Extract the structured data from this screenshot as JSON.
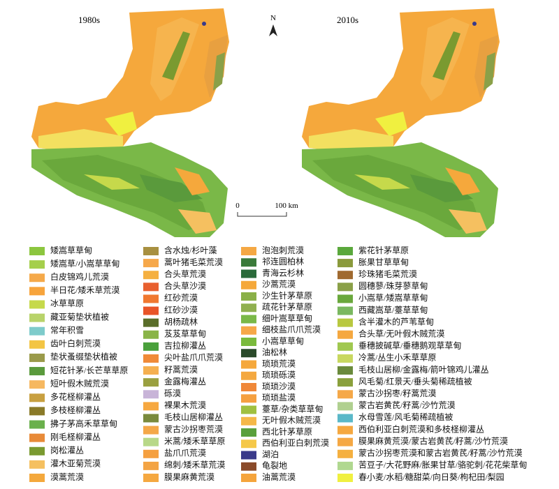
{
  "maps": [
    {
      "label": "1980s"
    },
    {
      "label": "2010s"
    }
  ],
  "north": "N",
  "scale_bar": {
    "start": "0",
    "end": "100 km"
  },
  "legend": {
    "columns": [
      [
        {
          "name": "矮嵩草草甸",
          "color": "#8cc63f"
        },
        {
          "name": "矮嵩草/小嵩草草甸",
          "color": "#a5cf4c"
        },
        {
          "name": "白皮锦鸡儿荒漠",
          "color": "#f5a94a"
        },
        {
          "name": "半日花/矮禾草荒漠",
          "color": "#f7a43c"
        },
        {
          "name": "冰草草原",
          "color": "#c6d94b"
        },
        {
          "name": "藏亚菊垫状植被",
          "color": "#b8d36a"
        },
        {
          "name": "常年积雪",
          "color": "#7ecbcb"
        },
        {
          "name": "齿叶白刺荒漠",
          "color": "#f3c544"
        },
        {
          "name": "垫状蚤缀垫状植被",
          "color": "#9a9a4a"
        },
        {
          "name": "短花针茅/长芒草草原",
          "color": "#5a9a3c"
        },
        {
          "name": "短叶假木贼荒漠",
          "color": "#f6b860"
        },
        {
          "name": "多花柽柳灌丛",
          "color": "#c8a040"
        },
        {
          "name": "多枝柽柳灌丛",
          "color": "#8a7a28"
        },
        {
          "name": "拂子茅高禾草草甸",
          "color": "#6ab04c"
        },
        {
          "name": "刚毛柽柳灌丛",
          "color": "#e88a38"
        },
        {
          "name": "岗松灌丛",
          "color": "#7a9a30"
        },
        {
          "name": "灌木亚菊荒漠",
          "color": "#f5c060"
        },
        {
          "name": "漠蒿荒漠",
          "color": "#f4a83c"
        }
      ],
      [
        {
          "name": "含水烛/杉叶藻",
          "color": "#a89040"
        },
        {
          "name": "蒿叶猪毛菜荒漠",
          "color": "#f6a84a"
        },
        {
          "name": "合头草荒漠",
          "color": "#f5b040"
        },
        {
          "name": "合头草沙漠",
          "color": "#e86030"
        },
        {
          "name": "红砂荒漠",
          "color": "#f07830"
        },
        {
          "name": "红砂沙漠",
          "color": "#e85428"
        },
        {
          "name": "胡杨疏林",
          "color": "#5a6e2a"
        },
        {
          "name": "芨芨草草甸",
          "color": "#8ab448"
        },
        {
          "name": "吉拉柳灌丛",
          "color": "#4aa03c"
        },
        {
          "name": "尖叶盐爪爪荒漠",
          "color": "#f08a38"
        },
        {
          "name": "籽蒿荒漠",
          "color": "#f5b050"
        },
        {
          "name": "金露梅灌丛",
          "color": "#9aa040"
        },
        {
          "name": "砾漠",
          "color": "#c8b4d8"
        },
        {
          "name": "裸果木荒漠",
          "color": "#f6a840"
        },
        {
          "name": "毛枝山居柳灌丛",
          "color": "#7a8a3c"
        },
        {
          "name": "蒙古沙拐枣荒漠",
          "color": "#f4a848"
        },
        {
          "name": "米蒿/矮禾草草原",
          "color": "#b8d888"
        },
        {
          "name": "盐爪爪荒漠",
          "color": "#f5a040"
        },
        {
          "name": "绵刺/矮禾草荒漠",
          "color": "#f3a444"
        },
        {
          "name": "膜果麻黄荒漠",
          "color": "#f5a840"
        }
      ],
      [
        {
          "name": "泡泡刺荒漠",
          "color": "#f5a844"
        },
        {
          "name": "祁连圆柏林",
          "color": "#3a7a3a"
        },
        {
          "name": "青海云杉林",
          "color": "#2a6a3a"
        },
        {
          "name": "沙蒿荒漠",
          "color": "#f5a83a"
        },
        {
          "name": "沙生针茅草原",
          "color": "#8ab048"
        },
        {
          "name": "疏花针茅草原",
          "color": "#90b050"
        },
        {
          "name": "细叶嵩草草甸",
          "color": "#7ab848"
        },
        {
          "name": "细枝盐爪爪荒漠",
          "color": "#f6a848"
        },
        {
          "name": "小嵩草草甸",
          "color": "#7aba3c"
        },
        {
          "name": "油松林",
          "color": "#2a4a2a"
        },
        {
          "name": "琐琐荒漠",
          "color": "#f5a83c"
        },
        {
          "name": "琐琐砾漠",
          "color": "#f4a840"
        },
        {
          "name": "琐琐沙漠",
          "color": "#f08838"
        },
        {
          "name": "琐琐盐漠",
          "color": "#f5a040"
        },
        {
          "name": "薹草/杂类草草甸",
          "color": "#a0c040"
        },
        {
          "name": "无叶假木贼荒漠",
          "color": "#f5b848"
        },
        {
          "name": "西北针茅草原",
          "color": "#5aa03c"
        },
        {
          "name": "西伯利亚白刺荒漠",
          "color": "#f5c848"
        },
        {
          "name": "湖泊",
          "color": "#3a3a8a"
        },
        {
          "name": "龟裂地",
          "color": "#8a4a2a"
        },
        {
          "name": "油蒿荒漠",
          "color": "#f5a43c"
        }
      ],
      [
        {
          "name": "紫花针茅草原",
          "color": "#5aa83c"
        },
        {
          "name": "胀果甘草草甸",
          "color": "#8a9a3c"
        },
        {
          "name": "珍珠猪毛菜荒漠",
          "color": "#a06a30"
        },
        {
          "name": "圆穗蓼/珠芽蓼草甸",
          "color": "#8aa048"
        },
        {
          "name": "小嵩草/矮嵩草草甸",
          "color": "#6aa83c"
        },
        {
          "name": "西藏嵩草/薹草草甸",
          "color": "#7ab860"
        },
        {
          "name": "含半灌木的芦苇草甸",
          "color": "#b8c840"
        },
        {
          "name": "合头草/无叶假木贼荒漠",
          "color": "#f5a840"
        },
        {
          "name": "垂穗披碱草/垂穗鹅观草草甸",
          "color": "#a0c850"
        },
        {
          "name": "冷蒿/丛生小禾草草原",
          "color": "#c8d860"
        },
        {
          "name": "毛枝山居柳/金露梅/箭叶锦鸡儿灌丛",
          "color": "#6a8a3c"
        },
        {
          "name": "风毛菊/红景天/垂头菊稀疏植被",
          "color": "#8aa03c"
        },
        {
          "name": "蒙古沙拐枣/籽蒿荒漠",
          "color": "#f5a848"
        },
        {
          "name": "蒙古岩黄芪/籽蒿/沙竹荒漠",
          "color": "#b0d090"
        },
        {
          "name": "水母雪莲/风毛菊稀疏植被",
          "color": "#5ab8c8"
        },
        {
          "name": "西伯利亚白刺荒漠和多枝柽柳灌丛",
          "color": "#f5a840"
        },
        {
          "name": "膜果麻黄荒漠/蒙古岩黄芪/籽蒿/沙竹荒漠",
          "color": "#f5a844"
        },
        {
          "name": "蒙古沙拐枣荒漠和蒙古岩黄芪/籽蒿/沙竹荒漠",
          "color": "#f5b040"
        },
        {
          "name": "苦豆子/大花野麻/胀果甘草/骆驼刺/花花柴草甸",
          "color": "#b0d890"
        },
        {
          "name": "春小麦/水稻/糖甜菜/向日葵/枸杞田/梨园",
          "color": "#f0f040"
        }
      ]
    ]
  }
}
